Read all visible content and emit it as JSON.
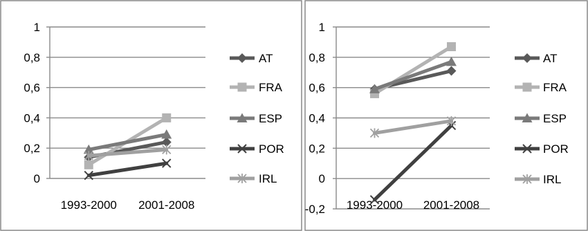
{
  "chart_data": [
    {
      "type": "line",
      "categories": [
        "1993-2000",
        "2001-2008"
      ],
      "ylim": [
        0,
        1
      ],
      "yticks": [
        0,
        0.2,
        0.4,
        0.6,
        0.8,
        1
      ],
      "ytick_labels": [
        "0",
        "0,2",
        "0,4",
        "0,6",
        "0,8",
        "1"
      ],
      "grid": true,
      "legend_position": "right",
      "series": [
        {
          "name": "AT",
          "values": [
            0.14,
            0.24
          ],
          "color": "#595959",
          "marker": "diamond"
        },
        {
          "name": "FRA",
          "values": [
            0.09,
            0.4
          ],
          "color": "#b3b3b3",
          "marker": "square"
        },
        {
          "name": "ESP",
          "values": [
            0.19,
            0.29
          ],
          "color": "#7a7a7a",
          "marker": "triangle"
        },
        {
          "name": "POR",
          "values": [
            0.02,
            0.1
          ],
          "color": "#404040",
          "marker": "x"
        },
        {
          "name": "IRL",
          "values": [
            0.15,
            0.19
          ],
          "color": "#a0a0a0",
          "marker": "asterisk"
        }
      ]
    },
    {
      "type": "line",
      "categories": [
        "1993-2000",
        "2001-2008"
      ],
      "ylim": [
        -0.2,
        1
      ],
      "yticks": [
        -0.2,
        0,
        0.2,
        0.4,
        0.6,
        0.8,
        1
      ],
      "ytick_labels": [
        "-0,2",
        "0",
        "0,2",
        "0,4",
        "0,6",
        "0,8",
        "1"
      ],
      "grid": true,
      "legend_position": "right",
      "series": [
        {
          "name": "AT",
          "values": [
            0.59,
            0.71
          ],
          "color": "#595959",
          "marker": "diamond"
        },
        {
          "name": "FRA",
          "values": [
            0.56,
            0.87
          ],
          "color": "#b3b3b3",
          "marker": "square"
        },
        {
          "name": "ESP",
          "values": [
            0.59,
            0.77
          ],
          "color": "#7a7a7a",
          "marker": "triangle"
        },
        {
          "name": "POR",
          "values": [
            -0.14,
            0.35
          ],
          "color": "#404040",
          "marker": "x"
        },
        {
          "name": "IRL",
          "values": [
            0.3,
            0.38
          ],
          "color": "#a0a0a0",
          "marker": "asterisk"
        }
      ]
    }
  ]
}
